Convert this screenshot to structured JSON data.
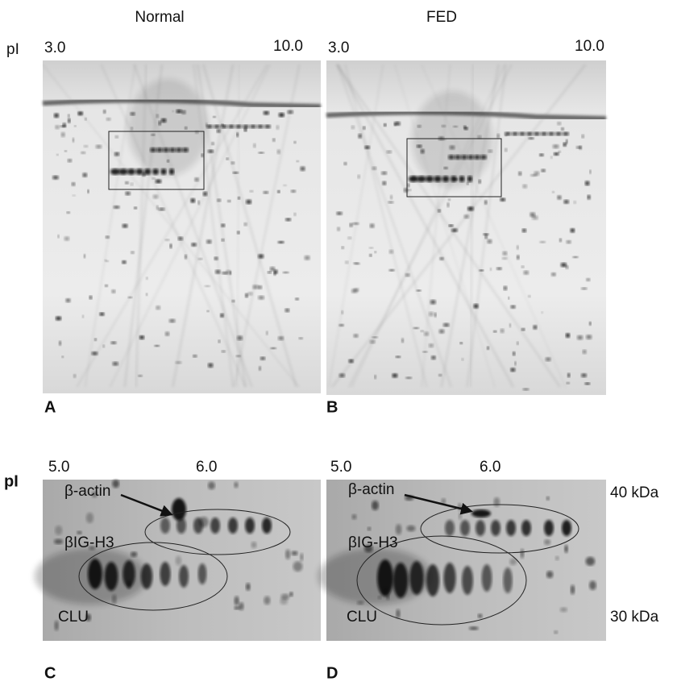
{
  "top": {
    "pi_label": "pI",
    "panels": [
      {
        "title": "Normal",
        "pi_start": "3.0",
        "pi_end": "10.0",
        "label": "A"
      },
      {
        "title": "FED",
        "pi_start": "3.0",
        "pi_end": "10.0",
        "label": "B"
      }
    ]
  },
  "bottom": {
    "pi_label": "pI",
    "panels": [
      {
        "pi_start": "5.0",
        "pi_mid": "6.0",
        "label": "C",
        "actin": "β-actin",
        "big_h3": "βIG-H3",
        "clu": "CLU"
      },
      {
        "pi_start": "5.0",
        "pi_mid": "6.0",
        "label": "D",
        "actin": "β-actin",
        "big_h3": "βIG-H3",
        "clu": "CLU"
      }
    ],
    "mw_markers": [
      "40 kDa",
      "30 kDa"
    ]
  }
}
